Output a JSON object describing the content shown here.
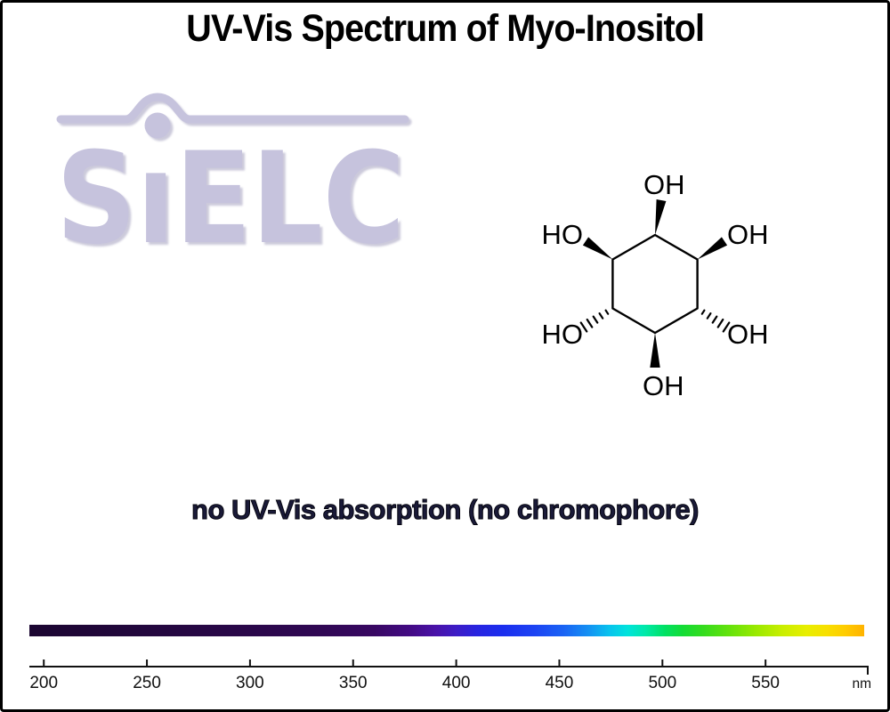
{
  "title": "UV-Vis Spectrum of Myo-Inositol",
  "logo": {
    "text": "SiELC",
    "brand_color": "#c6c3dd"
  },
  "molecule": {
    "name": "myo-inositol",
    "hydroxyl_labels": {
      "top": "OH",
      "upper_left": "HO",
      "upper_right": "OH",
      "lower_left": "HO",
      "lower_right": "OH",
      "bottom": "OH"
    }
  },
  "caption": "no UV-Vis absorption (no chromophore)",
  "chart_data": {
    "type": "heatmap",
    "title": "UV-Vis Spectrum of Myo-Inositol",
    "xlabel": "nm",
    "x_ticks": [
      200,
      250,
      300,
      350,
      400,
      450,
      500,
      550
    ],
    "x_range": [
      193,
      600
    ],
    "series": [],
    "annotation": "no UV-Vis absorption (no chromophore)",
    "colorbar_stops": [
      {
        "nm": 193,
        "color": "#1b0631"
      },
      {
        "nm": 250,
        "color": "#23073e"
      },
      {
        "nm": 300,
        "color": "#2a074a"
      },
      {
        "nm": 335,
        "color": "#300854"
      },
      {
        "nm": 360,
        "color": "#380862"
      },
      {
        "nm": 378,
        "color": "#430a85"
      },
      {
        "nm": 390,
        "color": "#4912a8"
      },
      {
        "nm": 400,
        "color": "#3d1cc6"
      },
      {
        "nm": 410,
        "color": "#2824e0"
      },
      {
        "nm": 422,
        "color": "#1b2dee"
      },
      {
        "nm": 438,
        "color": "#1c43f3"
      },
      {
        "nm": 452,
        "color": "#1a63f4"
      },
      {
        "nm": 464,
        "color": "#1490f3"
      },
      {
        "nm": 474,
        "color": "#08c2ee"
      },
      {
        "nm": 483,
        "color": "#00e3dc"
      },
      {
        "nm": 492,
        "color": "#00e9a6"
      },
      {
        "nm": 501,
        "color": "#00e165"
      },
      {
        "nm": 510,
        "color": "#14dc35"
      },
      {
        "nm": 520,
        "color": "#35dc1e"
      },
      {
        "nm": 532,
        "color": "#63e20c"
      },
      {
        "nm": 545,
        "color": "#98e900"
      },
      {
        "nm": 558,
        "color": "#c9ee00"
      },
      {
        "nm": 570,
        "color": "#e8ee00"
      },
      {
        "nm": 580,
        "color": "#f8df00"
      },
      {
        "nm": 589,
        "color": "#ffcb00"
      },
      {
        "nm": 598,
        "color": "#ffb200"
      }
    ]
  }
}
